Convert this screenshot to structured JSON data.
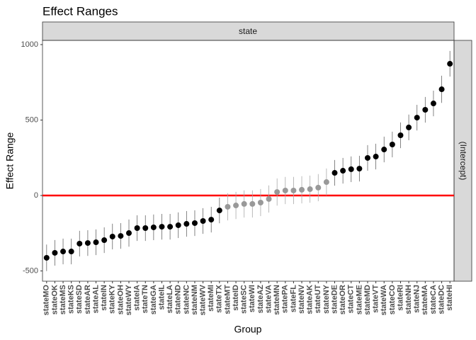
{
  "chart_data": {
    "type": "dotplot",
    "title": "Effect Ranges",
    "facet_top": "state",
    "facet_right": "(Intercept)",
    "xlabel": "Group",
    "ylabel": "Effect Range",
    "categories": [
      "stateMO",
      "stateOK",
      "stateMS",
      "stateKS",
      "stateSD",
      "stateAR",
      "stateAL",
      "stateIN",
      "stateKY",
      "stateOH",
      "stateWY",
      "stateIA",
      "stateTN",
      "stateGA",
      "stateIL",
      "stateLA",
      "stateND",
      "stateNC",
      "stateNM",
      "stateWV",
      "stateMI",
      "stateTX",
      "stateMT",
      "stateID",
      "stateSC",
      "stateWI",
      "stateAZ",
      "stateVA",
      "stateMN",
      "statePA",
      "stateFL",
      "stateNV",
      "stateAK",
      "stateUT",
      "stateNY",
      "stateDE",
      "stateOR",
      "stateCT",
      "stateME",
      "stateMD",
      "stateVT",
      "stateWA",
      "stateCO",
      "stateRI",
      "stateNH",
      "stateNJ",
      "stateMA",
      "stateCA",
      "stateDC",
      "stateHI"
    ],
    "values": [
      -413,
      -380,
      -371,
      -371,
      -319,
      -315,
      -310,
      -296,
      -272,
      -268,
      -249,
      -216,
      -216,
      -211,
      -207,
      -207,
      -197,
      -188,
      -183,
      -169,
      -160,
      -99,
      -75,
      -66,
      -56,
      -56,
      -47,
      -23,
      23,
      33,
      33,
      38,
      42,
      52,
      89,
      150,
      164,
      174,
      178,
      249,
      258,
      305,
      338,
      399,
      451,
      516,
      568,
      610,
      704,
      873
    ],
    "errors": [
      88,
      85,
      85,
      85,
      85,
      85,
      85,
      85,
      85,
      85,
      90,
      85,
      85,
      85,
      85,
      85,
      85,
      85,
      85,
      85,
      85,
      85,
      90,
      90,
      90,
      90,
      90,
      90,
      90,
      90,
      90,
      90,
      90,
      90,
      90,
      85,
      85,
      85,
      85,
      85,
      85,
      85,
      85,
      85,
      85,
      85,
      85,
      85,
      90,
      85
    ],
    "point_colors": [
      "#000000",
      "#000000",
      "#000000",
      "#000000",
      "#000000",
      "#000000",
      "#000000",
      "#000000",
      "#000000",
      "#000000",
      "#000000",
      "#000000",
      "#000000",
      "#000000",
      "#000000",
      "#000000",
      "#000000",
      "#000000",
      "#000000",
      "#000000",
      "#000000",
      "#000000",
      "#999999",
      "#999999",
      "#999999",
      "#999999",
      "#999999",
      "#999999",
      "#999999",
      "#999999",
      "#999999",
      "#999999",
      "#999999",
      "#999999",
      "#999999",
      "#000000",
      "#000000",
      "#000000",
      "#000000",
      "#000000",
      "#000000",
      "#000000",
      "#000000",
      "#000000",
      "#000000",
      "#000000",
      "#000000",
      "#000000",
      "#000000",
      "#000000"
    ],
    "hline": {
      "value": 0,
      "color": "#ff0000"
    },
    "ylim": [
      -568,
      1028
    ],
    "yticks": [
      -500,
      0,
      500,
      1000
    ]
  }
}
